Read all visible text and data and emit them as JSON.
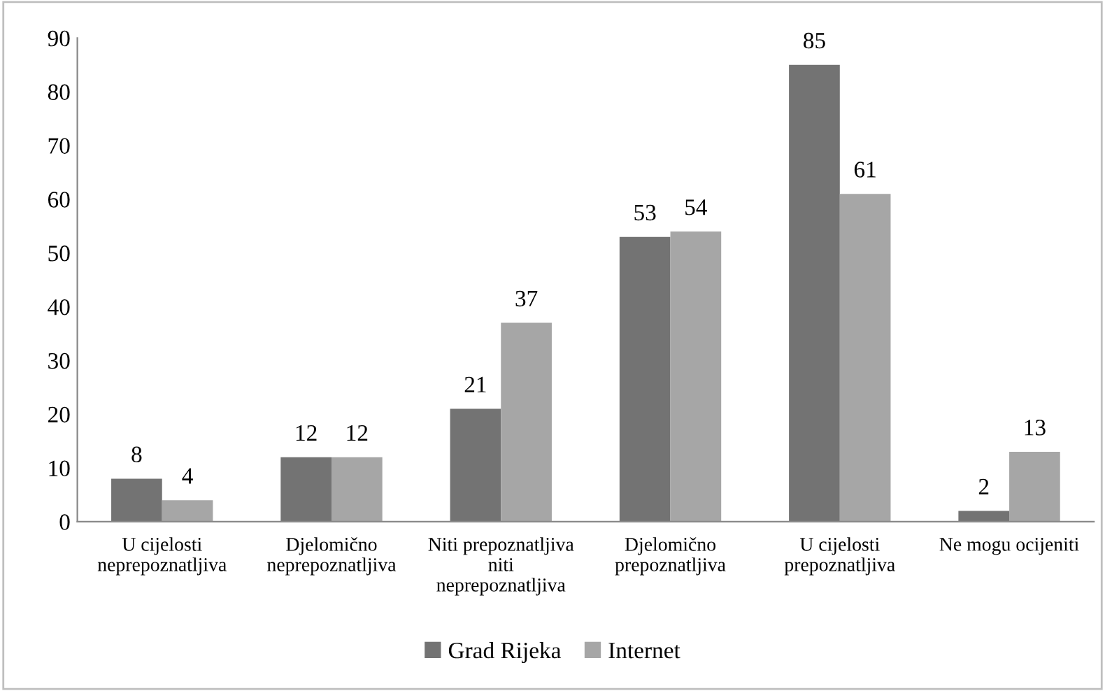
{
  "chart_data": {
    "type": "bar",
    "categories": [
      "U cijelosti\nneprepoznatljiva",
      "Djelomično\nneprepoznatljiva",
      "Niti prepoznatljiva\nniti\nneprepoznatljiva",
      "Djelomično\nprepoznatljiva",
      "U cijelosti\nprepoznatljiva",
      "Ne mogu ocijeniti"
    ],
    "series": [
      {
        "name": "Grad Rijeka",
        "color": "#737373",
        "values": [
          8,
          12,
          21,
          53,
          85,
          2
        ]
      },
      {
        "name": "Internet",
        "color": "#a6a6a6",
        "values": [
          4,
          12,
          37,
          54,
          61,
          13
        ]
      }
    ],
    "ylim": [
      0,
      90
    ],
    "yticks": [
      0,
      10,
      20,
      30,
      40,
      50,
      60,
      70,
      80,
      90
    ],
    "grid": false,
    "legend": "bottom",
    "data_labels": true
  }
}
